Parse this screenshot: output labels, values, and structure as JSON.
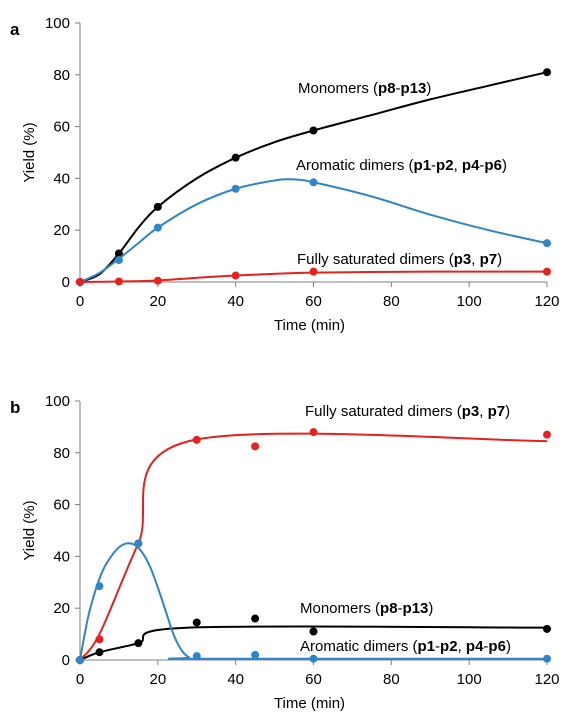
{
  "chart_data": [
    {
      "panel": "a",
      "type": "scatter",
      "xlabel": "Time (min)",
      "ylabel": "Yield (%)",
      "xlim": [
        0,
        120
      ],
      "ylim": [
        0,
        100
      ],
      "xticks": [
        0,
        20,
        40,
        60,
        80,
        100,
        120
      ],
      "yticks": [
        0,
        20,
        40,
        60,
        80,
        100
      ],
      "grid": false,
      "series": [
        {
          "name_parts": [
            [
              "Monomers (",
              false
            ],
            [
              "p8",
              true
            ],
            [
              "-",
              false
            ],
            [
              "p13",
              true
            ],
            [
              ")",
              false
            ]
          ],
          "color": "#000000",
          "x": [
            0,
            10,
            20,
            40,
            60,
            120
          ],
          "y": [
            0,
            11,
            29,
            48,
            58.5,
            81
          ],
          "curve": [
            [
              0,
              0
            ],
            [
              5,
              3
            ],
            [
              10,
              11
            ],
            [
              15,
              21
            ],
            [
              20,
              29
            ],
            [
              30,
              40
            ],
            [
              40,
              48
            ],
            [
              50,
              54
            ],
            [
              60,
              58.5
            ],
            [
              75,
              64.5
            ],
            [
              90,
              70.5
            ],
            [
              105,
              75.8
            ],
            [
              120,
              81
            ]
          ]
        },
        {
          "name_parts": [
            [
              "Aromatic dimers (",
              false
            ],
            [
              "p1",
              true
            ],
            [
              "-",
              false
            ],
            [
              "p2",
              true
            ],
            [
              ", ",
              false
            ],
            [
              "p4",
              true
            ],
            [
              "-",
              false
            ],
            [
              "p6",
              true
            ],
            [
              ")",
              false
            ]
          ],
          "color": "#2E86C8",
          "x": [
            0,
            10,
            20,
            40,
            60,
            120
          ],
          "y": [
            0,
            8.5,
            21,
            36,
            38.5,
            15
          ],
          "curve": [
            [
              0,
              0
            ],
            [
              5,
              3.5
            ],
            [
              10,
              9
            ],
            [
              15,
              15
            ],
            [
              20,
              21
            ],
            [
              30,
              30
            ],
            [
              40,
              36
            ],
            [
              50,
              39.2
            ],
            [
              55,
              39.6
            ],
            [
              60,
              38.5
            ],
            [
              75,
              33
            ],
            [
              90,
              26
            ],
            [
              105,
              20
            ],
            [
              120,
              15
            ]
          ]
        },
        {
          "name_parts": [
            [
              "Fully saturated dimers (",
              false
            ],
            [
              "p3",
              true
            ],
            [
              ", ",
              false
            ],
            [
              "p7",
              true
            ],
            [
              ")",
              false
            ]
          ],
          "color": "#E8211D",
          "x": [
            0,
            10,
            20,
            40,
            60,
            120
          ],
          "y": [
            0,
            0.2,
            0.5,
            2.5,
            4,
            4
          ],
          "curve": [
            [
              0,
              0
            ],
            [
              10,
              0.2
            ],
            [
              20,
              0.6
            ],
            [
              30,
              1.6
            ],
            [
              40,
              2.5
            ],
            [
              60,
              3.6
            ],
            [
              90,
              4
            ],
            [
              120,
              4
            ]
          ]
        }
      ]
    },
    {
      "panel": "b",
      "type": "scatter",
      "xlabel": "Time (min)",
      "ylabel": "Yield (%)",
      "xlim": [
        0,
        120
      ],
      "ylim": [
        0,
        100
      ],
      "xticks": [
        0,
        20,
        40,
        60,
        80,
        100,
        120
      ],
      "yticks": [
        0,
        20,
        40,
        60,
        80,
        100
      ],
      "grid": false,
      "series": [
        {
          "name_parts": [
            [
              "Fully saturated dimers (",
              false
            ],
            [
              "p3",
              true
            ],
            [
              ", ",
              false
            ],
            [
              "p7",
              true
            ],
            [
              ")",
              false
            ]
          ],
          "color": "#E8211D",
          "x": [
            0,
            5,
            15,
            30,
            45,
            60,
            120
          ],
          "y": [
            0,
            8,
            45,
            85,
            82.5,
            88,
            87
          ],
          "curve": [
            [
              0,
              0
            ],
            [
              5,
              10
            ],
            [
              15,
              45
            ],
            [
              28,
              84.5
            ],
            [
              120,
              84.5
            ]
          ]
        },
        {
          "name_parts": [
            [
              "Monomers (",
              false
            ],
            [
              "p8",
              true
            ],
            [
              "-",
              false
            ],
            [
              "p13",
              true
            ],
            [
              ")",
              false
            ]
          ],
          "color": "#000000",
          "x": [
            0,
            5,
            15,
            30,
            45,
            60,
            120
          ],
          "y": [
            0,
            3,
            6.5,
            14.5,
            16,
            11,
            12
          ],
          "curve": [
            [
              0,
              0
            ],
            [
              5,
              3
            ],
            [
              15,
              6.5
            ],
            [
              28,
              12.5
            ],
            [
              120,
              12.5
            ]
          ]
        },
        {
          "name_parts": [
            [
              "Aromatic dimers (",
              false
            ],
            [
              "p1",
              true
            ],
            [
              "-",
              false
            ],
            [
              "p2",
              true
            ],
            [
              ", ",
              false
            ],
            [
              "p4",
              true
            ],
            [
              "-",
              false
            ],
            [
              "p6",
              true
            ],
            [
              ")",
              false
            ]
          ],
          "color": "#2E86C8",
          "x": [
            0,
            5,
            15,
            30,
            45,
            60,
            120
          ],
          "y": [
            0,
            28.5,
            45,
            1.5,
            2,
            0.5,
            0.5
          ],
          "curve": [
            [
              0,
              0
            ],
            [
              2,
              16
            ],
            [
              4,
              27
            ],
            [
              6,
              35
            ],
            [
              8,
              40
            ],
            [
              10,
              43.5
            ],
            [
              12,
              45
            ],
            [
              14,
              44.5
            ],
            [
              16,
              41.5
            ],
            [
              18,
              36
            ],
            [
              20,
              28
            ],
            [
              22,
              19
            ],
            [
              24,
              10
            ],
            [
              26,
              4
            ],
            [
              28,
              1
            ],
            [
              30,
              0.5
            ],
            [
              120,
              0.5
            ]
          ]
        }
      ]
    }
  ]
}
